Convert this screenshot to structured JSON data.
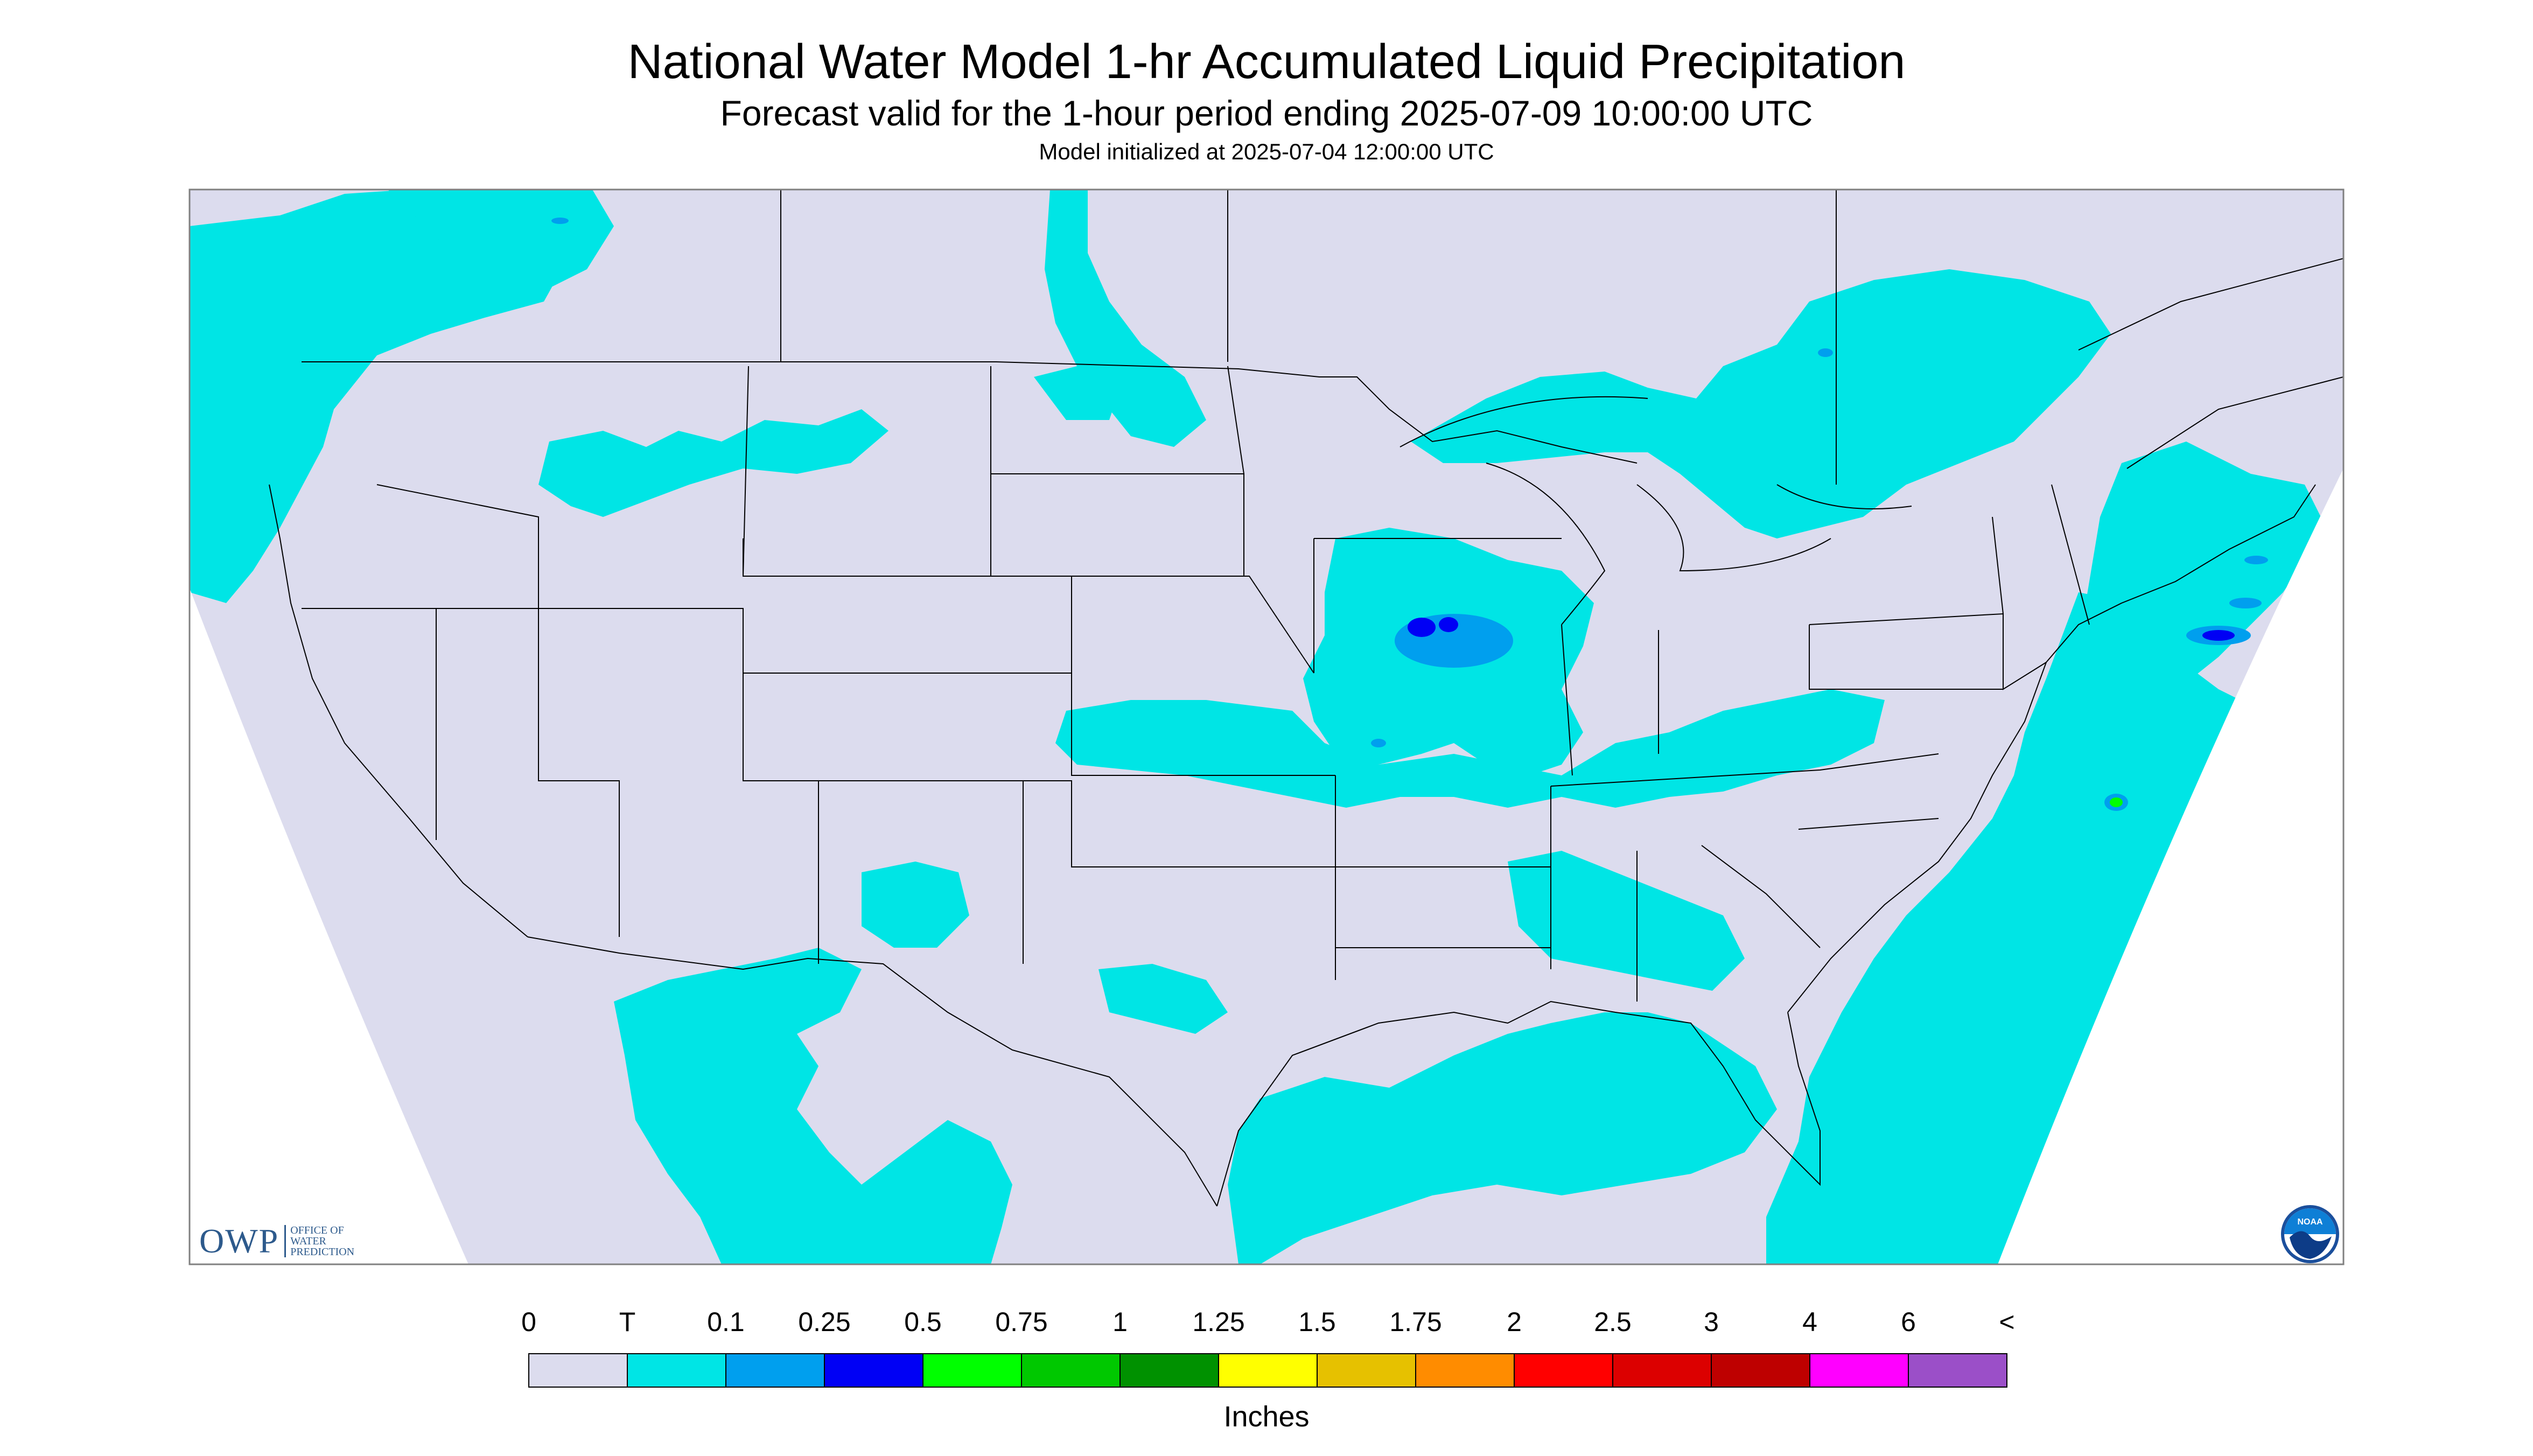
{
  "title": "National Water Model 1-hr Accumulated Liquid Precipitation",
  "subtitle": "Forecast valid for the 1-hour period ending 2025-07-09 10:00:00 UTC",
  "init_line": "Model initialized at 2025-07-04 12:00:00 UTC",
  "logos": {
    "owp_mark": "OWP",
    "owp_text": "OFFICE OF\nWATER\nPREDICTION",
    "noaa_text": "NOAA"
  },
  "legend": {
    "units": "Inches",
    "labels": [
      "0",
      "T",
      "0.1",
      "0.25",
      "0.5",
      "0.75",
      "1",
      "1.25",
      "1.5",
      "1.75",
      "2",
      "2.5",
      "3",
      "4",
      "6",
      "<"
    ],
    "colors": [
      "#dcdcee",
      "#00e5e5",
      "#009fee",
      "#0000f5",
      "#00ff00",
      "#00c800",
      "#009100",
      "#ffff00",
      "#e6c100",
      "#ff8c00",
      "#ff0000",
      "#dc0000",
      "#be0000",
      "#ff00ff",
      "#9b4fc8"
    ]
  },
  "map": {
    "background_color": "#dcdcee",
    "no_data_color": "#ffffff",
    "border_color": "#000000"
  }
}
